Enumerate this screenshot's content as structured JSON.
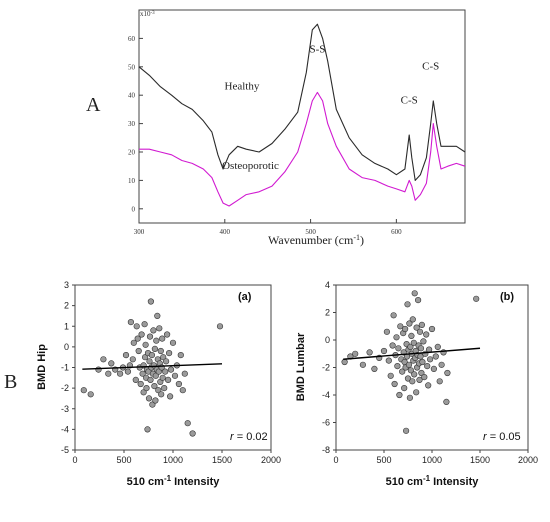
{
  "panels": {
    "a_label": "A",
    "b_label": "B"
  },
  "chart_data": [
    {
      "id": "spectrum",
      "type": "line",
      "xlabel": "Wavenumber (cm",
      "xlabel_sup": "-1",
      "xlabel_close": ")",
      "ylabel": "",
      "y_scale_label": "x10",
      "y_scale_sup": "-3",
      "xlim": [
        300,
        680
      ],
      "ylim": [
        -5,
        70
      ],
      "xticks": [
        300,
        400,
        500,
        600
      ],
      "yticks": [
        0,
        10,
        20,
        30,
        40,
        50,
        60
      ],
      "colors": {
        "healthy": "#2b2b2b",
        "osteoporotic": "#d11ad1"
      },
      "annotations": [
        {
          "text": "Healthy",
          "x": 420,
          "y": 42
        },
        {
          "text": "Osteoporotic",
          "x": 430,
          "y": 14
        },
        {
          "text": "S-S",
          "x": 508,
          "y": 55
        },
        {
          "text": "C-S",
          "x": 615,
          "y": 37
        },
        {
          "text": "C-S",
          "x": 640,
          "y": 49
        }
      ],
      "series": [
        {
          "name": "Healthy",
          "x": [
            300,
            312,
            325,
            338,
            350,
            362,
            375,
            385,
            392,
            398,
            405,
            415,
            425,
            440,
            455,
            470,
            485,
            495,
            502,
            508,
            514,
            520,
            530,
            545,
            560,
            575,
            590,
            600,
            610,
            615,
            618,
            622,
            628,
            635,
            640,
            643,
            647,
            652,
            660,
            670,
            680
          ],
          "values": [
            50,
            47,
            43,
            40,
            37,
            35,
            31,
            27,
            19,
            14,
            19,
            22,
            21,
            20,
            23,
            28,
            34,
            48,
            63,
            65,
            60,
            52,
            35,
            25,
            19,
            16,
            14,
            12,
            14,
            26,
            18,
            10,
            12,
            18,
            30,
            38,
            30,
            22,
            22,
            22,
            20
          ]
        },
        {
          "name": "Osteoporotic",
          "x": [
            300,
            312,
            325,
            338,
            350,
            362,
            375,
            385,
            392,
            398,
            405,
            415,
            425,
            440,
            455,
            470,
            485,
            495,
            502,
            508,
            514,
            520,
            530,
            545,
            560,
            575,
            590,
            600,
            610,
            615,
            618,
            622,
            628,
            635,
            640,
            643,
            647,
            652,
            660,
            670,
            680
          ],
          "values": [
            21,
            21,
            20,
            19,
            17,
            16,
            14,
            11,
            6,
            2,
            1,
            3,
            5,
            6,
            8,
            13,
            20,
            30,
            38,
            41,
            38,
            30,
            22,
            14,
            11,
            10,
            8,
            7,
            6,
            10,
            8,
            3,
            5,
            9,
            20,
            30,
            22,
            14,
            15,
            16,
            15
          ]
        }
      ]
    },
    {
      "id": "scatter-a",
      "type": "scatter",
      "panel_label": "(a)",
      "xlabel": "510 cm",
      "xlabel_sup": "-1",
      "xlabel_tail": " Intensity",
      "ylabel": "BMD Hip",
      "xlim": [
        0,
        2000
      ],
      "ylim": [
        -5,
        3
      ],
      "xticks": [
        0,
        500,
        1000,
        1500,
        2000
      ],
      "yticks": [
        -5,
        -4,
        -3,
        -2,
        -1,
        0,
        1,
        2,
        3
      ],
      "r_label": "r",
      "r_value": " = 0.02",
      "trend": {
        "x": [
          75,
          1500
        ],
        "y": [
          -1.08,
          -0.82
        ]
      },
      "points": [
        [
          90,
          -2.1
        ],
        [
          160,
          -2.3
        ],
        [
          240,
          -1.1
        ],
        [
          290,
          -0.6
        ],
        [
          340,
          -1.3
        ],
        [
          370,
          -0.8
        ],
        [
          410,
          -1.1
        ],
        [
          460,
          -1.3
        ],
        [
          490,
          -1.0
        ],
        [
          520,
          -0.4
        ],
        [
          540,
          -1.2
        ],
        [
          560,
          -0.9
        ],
        [
          570,
          1.2
        ],
        [
          590,
          -0.6
        ],
        [
          600,
          0.2
        ],
        [
          620,
          -1.6
        ],
        [
          630,
          1.0
        ],
        [
          640,
          0.4
        ],
        [
          650,
          -0.2
        ],
        [
          660,
          -1.0
        ],
        [
          670,
          -1.8
        ],
        [
          680,
          0.6
        ],
        [
          690,
          -1.3
        ],
        [
          700,
          -2.2
        ],
        [
          700,
          -0.9
        ],
        [
          710,
          1.1
        ],
        [
          715,
          -0.5
        ],
        [
          720,
          0.1
        ],
        [
          725,
          -1.5
        ],
        [
          730,
          -2.0
        ],
        [
          735,
          -1.1
        ],
        [
          740,
          -4.0
        ],
        [
          745,
          -0.3
        ],
        [
          750,
          -1.2
        ],
        [
          755,
          -2.5
        ],
        [
          760,
          -0.7
        ],
        [
          765,
          0.5
        ],
        [
          770,
          -1.6
        ],
        [
          775,
          2.2
        ],
        [
          780,
          -1.0
        ],
        [
          785,
          -0.4
        ],
        [
          790,
          -2.8
        ],
        [
          795,
          -1.3
        ],
        [
          800,
          0.8
        ],
        [
          805,
          -0.9
        ],
        [
          810,
          -1.9
        ],
        [
          815,
          -0.1
        ],
        [
          820,
          -2.6
        ],
        [
          825,
          -1.4
        ],
        [
          830,
          0.3
        ],
        [
          835,
          -1.1
        ],
        [
          840,
          1.5
        ],
        [
          845,
          -0.6
        ],
        [
          850,
          -2.1
        ],
        [
          855,
          -1.2
        ],
        [
          860,
          0.9
        ],
        [
          865,
          -0.8
        ],
        [
          870,
          -1.7
        ],
        [
          875,
          -0.2
        ],
        [
          880,
          -2.3
        ],
        [
          885,
          -1.0
        ],
        [
          890,
          0.4
        ],
        [
          895,
          -1.5
        ],
        [
          900,
          -0.5
        ],
        [
          910,
          -2.0
        ],
        [
          920,
          -1.2
        ],
        [
          930,
          -0.7
        ],
        [
          940,
          0.6
        ],
        [
          950,
          -1.6
        ],
        [
          960,
          -0.3
        ],
        [
          970,
          -2.4
        ],
        [
          980,
          -1.1
        ],
        [
          1000,
          0.2
        ],
        [
          1020,
          -1.4
        ],
        [
          1040,
          -0.9
        ],
        [
          1060,
          -1.8
        ],
        [
          1080,
          -0.4
        ],
        [
          1100,
          -2.1
        ],
        [
          1120,
          -1.3
        ],
        [
          1150,
          -3.7
        ],
        [
          1200,
          -4.2
        ],
        [
          1480,
          1.0
        ]
      ]
    },
    {
      "id": "scatter-b",
      "type": "scatter",
      "panel_label": "(b)",
      "xlabel": "510 cm",
      "xlabel_sup": "-1",
      "xlabel_tail": " Intensity",
      "ylabel": "BMD Lumbar",
      "xlim": [
        0,
        2000
      ],
      "ylim": [
        -8,
        4
      ],
      "xticks": [
        0,
        500,
        1000,
        1500,
        2000
      ],
      "yticks": [
        -8,
        -6,
        -4,
        -2,
        0,
        2,
        4
      ],
      "r_label": "r",
      "r_value": " = 0.05",
      "trend": {
        "x": [
          75,
          1500
        ],
        "y": [
          -1.4,
          -0.6
        ]
      },
      "points": [
        [
          90,
          -1.6
        ],
        [
          150,
          -1.2
        ],
        [
          200,
          -1.0
        ],
        [
          280,
          -1.8
        ],
        [
          350,
          -0.9
        ],
        [
          400,
          -2.1
        ],
        [
          450,
          -1.3
        ],
        [
          500,
          -0.8
        ],
        [
          530,
          0.6
        ],
        [
          550,
          -1.5
        ],
        [
          570,
          -2.6
        ],
        [
          590,
          -0.4
        ],
        [
          600,
          1.8
        ],
        [
          610,
          -3.2
        ],
        [
          620,
          -1.1
        ],
        [
          630,
          0.2
        ],
        [
          640,
          -1.9
        ],
        [
          650,
          -0.6
        ],
        [
          660,
          -4.0
        ],
        [
          670,
          1.0
        ],
        [
          680,
          -1.4
        ],
        [
          690,
          -2.3
        ],
        [
          700,
          0.5
        ],
        [
          705,
          -0.9
        ],
        [
          710,
          -3.5
        ],
        [
          715,
          -1.6
        ],
        [
          720,
          0.8
        ],
        [
          725,
          -2.0
        ],
        [
          730,
          -6.6
        ],
        [
          735,
          -0.3
        ],
        [
          740,
          -1.2
        ],
        [
          745,
          2.6
        ],
        [
          750,
          -2.8
        ],
        [
          755,
          -0.7
        ],
        [
          760,
          -1.8
        ],
        [
          765,
          1.2
        ],
        [
          770,
          -4.2
        ],
        [
          775,
          -0.5
        ],
        [
          780,
          -2.2
        ],
        [
          785,
          0.3
        ],
        [
          790,
          -1.0
        ],
        [
          795,
          -3.0
        ],
        [
          800,
          1.5
        ],
        [
          805,
          -1.5
        ],
        [
          810,
          -0.2
        ],
        [
          815,
          -2.5
        ],
        [
          820,
          3.4
        ],
        [
          825,
          -1.3
        ],
        [
          830,
          -0.8
        ],
        [
          835,
          -3.8
        ],
        [
          840,
          0.9
        ],
        [
          845,
          -2.0
        ],
        [
          850,
          -1.1
        ],
        [
          855,
          2.9
        ],
        [
          860,
          -0.4
        ],
        [
          865,
          -1.7
        ],
        [
          870,
          -2.9
        ],
        [
          875,
          0.6
        ],
        [
          880,
          -1.2
        ],
        [
          885,
          -0.6
        ],
        [
          890,
          -2.4
        ],
        [
          895,
          1.1
        ],
        [
          900,
          -1.6
        ],
        [
          910,
          -0.1
        ],
        [
          920,
          -2.7
        ],
        [
          930,
          -1.0
        ],
        [
          940,
          0.4
        ],
        [
          950,
          -1.9
        ],
        [
          960,
          -3.3
        ],
        [
          970,
          -0.7
        ],
        [
          980,
          -1.4
        ],
        [
          1000,
          0.8
        ],
        [
          1020,
          -2.1
        ],
        [
          1040,
          -1.2
        ],
        [
          1060,
          -0.5
        ],
        [
          1080,
          -3.0
        ],
        [
          1100,
          -1.8
        ],
        [
          1120,
          -0.9
        ],
        [
          1150,
          -4.5
        ],
        [
          1160,
          -2.4
        ],
        [
          1460,
          3.0
        ]
      ]
    }
  ]
}
